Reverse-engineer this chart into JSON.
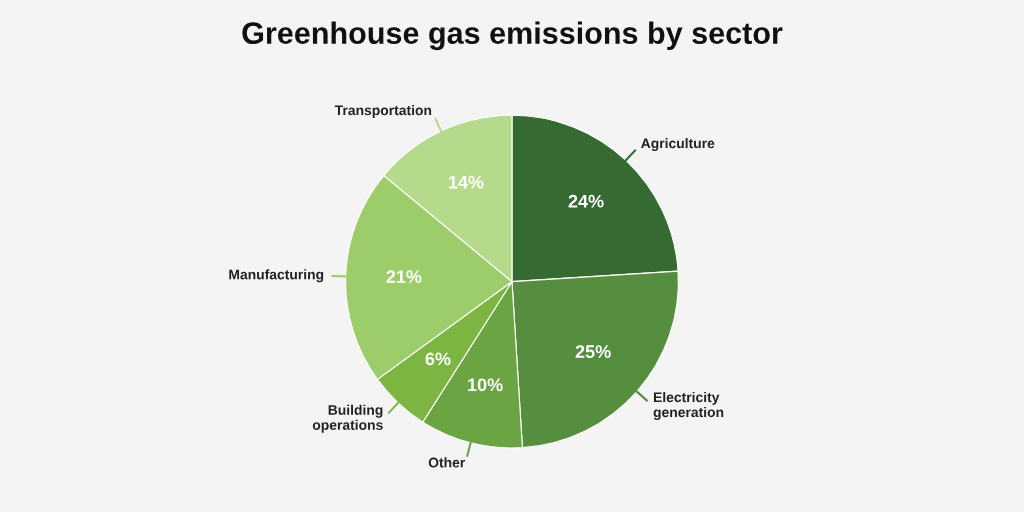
{
  "chart_data": {
    "type": "pie",
    "title": "Greenhouse gas emissions by sector",
    "categories": [
      "Agriculture",
      "Electricity\ngeneration",
      "Other",
      "Building\noperations",
      "Manufacturing",
      "Transportation"
    ],
    "values": [
      24,
      25,
      10,
      6,
      21,
      14
    ],
    "colors": [
      "#356a32",
      "#558e3f",
      "#6aa443",
      "#7db543",
      "#9ccd6a",
      "#b6da8c"
    ],
    "value_labels": [
      "24%",
      "25%",
      "10%",
      "6%",
      "21%",
      "14%"
    ]
  }
}
